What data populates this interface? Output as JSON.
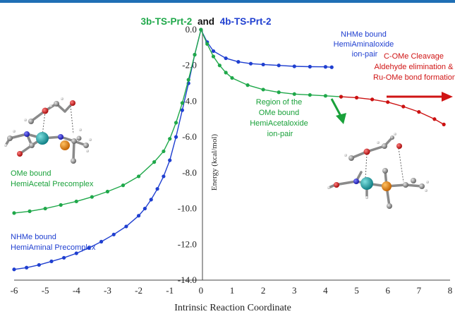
{
  "chart_data": {
    "type": "scatter",
    "title_parts": [
      {
        "text": "3b-TS-Prt-2",
        "color": "#1fa84a"
      },
      {
        "text": "and",
        "color": "#111111"
      },
      {
        "text": "4b-TS-Prt-2",
        "color": "#1f3fd0"
      }
    ],
    "xlabel": "Intrinsic Reaction Coordinate",
    "ylabel": "Energy (kcal/mol)",
    "xlim": [
      -6,
      8
    ],
    "ylim": [
      -14,
      0
    ],
    "x_ticks": [
      "-6",
      "-5",
      "-4",
      "-3",
      "-2",
      "-1",
      "0",
      "1",
      "2",
      "3",
      "4",
      "5",
      "6",
      "7",
      "8"
    ],
    "y_ticks": [
      "0.0",
      "-2.0",
      "-4.0",
      "-6.0",
      "-8.0",
      "-10.0",
      "-12.0",
      "-14.0"
    ],
    "grid": false,
    "series": [
      {
        "color": "#1f3fd0",
        "x": [
          -6.0,
          -5.6,
          -5.2,
          -4.8,
          -4.4,
          -4.0,
          -3.6,
          -3.2,
          -2.8,
          -2.4,
          -2.0,
          -1.8,
          -1.6,
          -1.4,
          -1.2,
          -1.0,
          -0.8,
          -0.6,
          -0.4,
          -0.2,
          0.0,
          0.2,
          0.4,
          0.8,
          1.2,
          1.6,
          2.0,
          2.5,
          3.0,
          3.5,
          4.0,
          4.2
        ],
        "y": [
          -13.4,
          -13.3,
          -13.15,
          -12.95,
          -12.75,
          -12.5,
          -12.2,
          -11.85,
          -11.45,
          -11.0,
          -10.4,
          -10.0,
          -9.5,
          -8.9,
          -8.2,
          -7.3,
          -6.0,
          -4.5,
          -3.0,
          -1.4,
          0.0,
          -0.7,
          -1.2,
          -1.6,
          -1.8,
          -1.9,
          -1.95,
          -2.0,
          -2.05,
          -2.07,
          -2.08,
          -2.1
        ]
      },
      {
        "color": "#1fa84a",
        "x": [
          -6.0,
          -5.5,
          -5.0,
          -4.5,
          -4.0,
          -3.5,
          -3.0,
          -2.5,
          -2.0,
          -1.5,
          -1.2,
          -1.0,
          -0.8,
          -0.6,
          -0.4,
          -0.2,
          0.0,
          0.2,
          0.4,
          0.6,
          0.8,
          1.0,
          1.5,
          2.0,
          2.5,
          3.0,
          3.5,
          4.0,
          4.5
        ],
        "y": [
          -10.25,
          -10.15,
          -10.0,
          -9.8,
          -9.6,
          -9.35,
          -9.05,
          -8.7,
          -8.2,
          -7.4,
          -6.8,
          -6.1,
          -5.2,
          -4.1,
          -2.8,
          -1.4,
          0.0,
          -0.8,
          -1.5,
          -2.0,
          -2.4,
          -2.7,
          -3.1,
          -3.35,
          -3.5,
          -3.6,
          -3.65,
          -3.7,
          -3.75
        ]
      },
      {
        "color": "#cc1111",
        "x": [
          4.5,
          5.0,
          5.5,
          6.0,
          6.5,
          7.0,
          7.5,
          7.8
        ],
        "y": [
          -3.75,
          -3.8,
          -3.9,
          -4.05,
          -4.3,
          -4.6,
          -5.0,
          -5.3
        ]
      }
    ],
    "annotations": [
      {
        "lines": [
          "NHMe bound",
          "HemiAminaloxide",
          "ion-pair"
        ],
        "color": "#1f3fd0"
      },
      {
        "lines": [
          "C-OMe Cleavage",
          "Aldehyde elimination &",
          "Ru-OMe bond formation"
        ],
        "color": "#d01515"
      },
      {
        "lines": [
          "Region of the",
          "OMe bound",
          "HemiAcetaloxide",
          "ion-pair"
        ],
        "color": "#19a13a"
      },
      {
        "lines": [
          "OMe bound",
          "HemiAcetal Precomplex"
        ],
        "color": "#19a13a"
      },
      {
        "lines": [
          "NHMe bound",
          "HemiAminal Precomplex"
        ],
        "color": "#1f3fd0"
      }
    ]
  }
}
